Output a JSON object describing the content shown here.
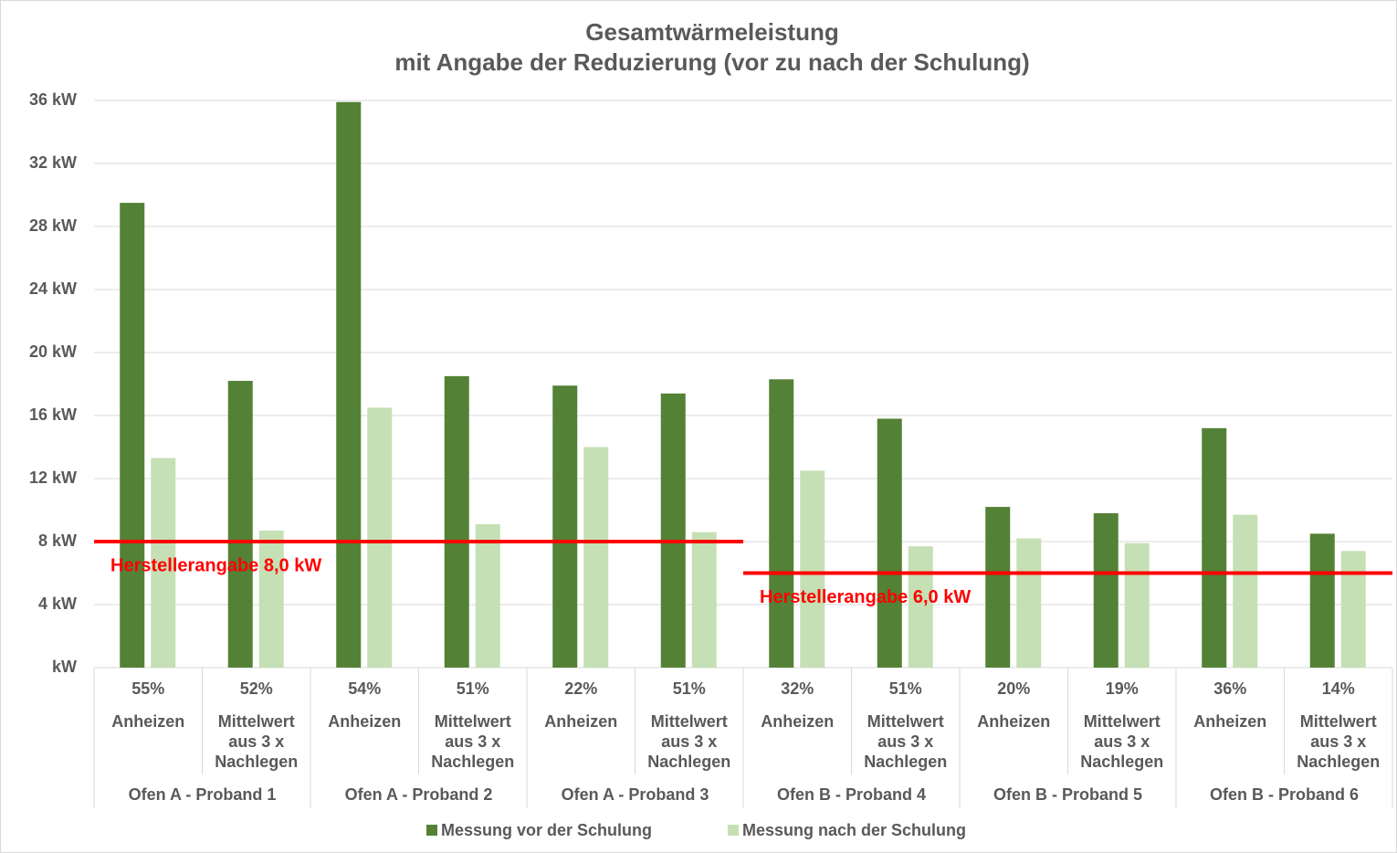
{
  "chart_data": {
    "type": "bar",
    "title": [
      "Gesamtwärmeleistung",
      "mit Angabe der Reduzierung (vor zu nach der Schulung)"
    ],
    "categories": [
      "Anheizen",
      "Mittelwert aus 3 x Nachlegen",
      "Anheizen",
      "Mittelwert aus 3 x Nachlegen",
      "Anheizen",
      "Mittelwert aus 3 x Nachlegen",
      "Anheizen",
      "Mittelwert aus 3 x Nachlegen",
      "Anheizen",
      "Mittelwert aus 3 x Nachlegen",
      "Anheizen",
      "Mittelwert aus 3 x Nachlegen"
    ],
    "groups": [
      "Ofen A - Proband 1",
      "Ofen A - Proband 2",
      "Ofen A - Proband 3",
      "Ofen B - Proband 4",
      "Ofen B - Proband 5",
      "Ofen B - Proband 6"
    ],
    "reduction": {
      "values": [
        55,
        52,
        54,
        51,
        22,
        51,
        32,
        51,
        20,
        19,
        36,
        14
      ],
      "value_labels": [
        "55%",
        "52%",
        "54%",
        "51%",
        "22%",
        "51%",
        "32%",
        "51%",
        "20%",
        "19%",
        "36%",
        "14%"
      ]
    },
    "series": [
      {
        "name": "Messung vor der Schulung",
        "color": "#538135",
        "values": [
          29.5,
          18.2,
          35.9,
          18.5,
          17.9,
          17.4,
          18.3,
          15.8,
          10.2,
          9.8,
          15.2,
          8.5
        ]
      },
      {
        "name": "Messung nach der Schulung",
        "color": "#c5e0b4",
        "values": [
          13.3,
          8.7,
          16.5,
          9.1,
          14.0,
          8.6,
          12.5,
          7.7,
          8.2,
          7.9,
          9.7,
          7.4
        ]
      }
    ],
    "reference_lines": [
      {
        "value": 8,
        "label": "Herstellerangabe 8,0 kW",
        "color": "#ff0000",
        "start_category": 0,
        "end_category": 5
      },
      {
        "value": 6,
        "label": "Herstellerangabe 6,0 kW",
        "color": "#ff0000",
        "start_category": 6,
        "end_category": 11
      }
    ],
    "ylim": [
      0,
      36
    ],
    "yticks": [
      {
        "value": 0,
        "label": "kW"
      },
      {
        "value": 4,
        "label": "4 kW"
      },
      {
        "value": 8,
        "label": "8 kW"
      },
      {
        "value": 12,
        "label": "12 kW"
      },
      {
        "value": 16,
        "label": "16 kW"
      },
      {
        "value": 20,
        "label": "20 kW"
      },
      {
        "value": 24,
        "label": "24 kW"
      },
      {
        "value": 28,
        "label": "28 kW"
      },
      {
        "value": 32,
        "label": "32 kW"
      },
      {
        "value": 36,
        "label": "36 kW"
      }
    ],
    "grid": true,
    "legend": "bottom"
  }
}
